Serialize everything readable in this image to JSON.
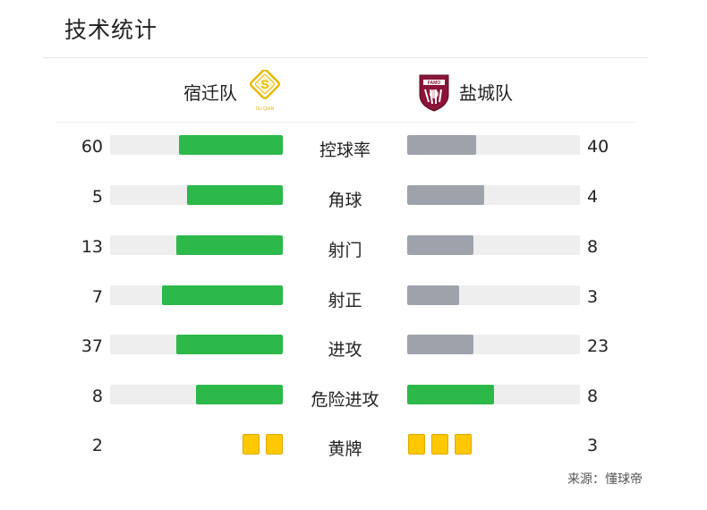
{
  "title": "技术统计",
  "home": {
    "name": "宿迁队",
    "logo_text": "SU QIAN",
    "bar_color": "#2db84a",
    "logo_color": "#e9b800"
  },
  "away": {
    "name": "盐城队",
    "logo_text": "FAMO",
    "bar_color": "#9da2ab",
    "logo_color": "#8a1538"
  },
  "neutral_track_color": "#eeeeee",
  "stats": [
    {
      "label": "控球率",
      "home": "60",
      "away": "40",
      "home_fraction": 0.6,
      "away_fraction": 0.4,
      "home_color": "#2db84a",
      "away_color": "#9da2ab"
    },
    {
      "label": "角球",
      "home": "5",
      "away": "4",
      "home_fraction": 0.555,
      "away_fraction": 0.444,
      "home_color": "#2db84a",
      "away_color": "#9da2ab"
    },
    {
      "label": "射门",
      "home": "13",
      "away": "8",
      "home_fraction": 0.619,
      "away_fraction": 0.381,
      "home_color": "#2db84a",
      "away_color": "#9da2ab"
    },
    {
      "label": "射正",
      "home": "7",
      "away": "3",
      "home_fraction": 0.7,
      "away_fraction": 0.3,
      "home_color": "#2db84a",
      "away_color": "#9da2ab"
    },
    {
      "label": "进攻",
      "home": "37",
      "away": "23",
      "home_fraction": 0.617,
      "away_fraction": 0.383,
      "home_color": "#2db84a",
      "away_color": "#9da2ab"
    },
    {
      "label": "危险进攻",
      "home": "8",
      "away": "8",
      "home_fraction": 0.5,
      "away_fraction": 0.5,
      "home_color": "#2db84a",
      "away_color": "#2db84a"
    }
  ],
  "yellow_cards": {
    "label": "黄牌",
    "home": "2",
    "away": "3",
    "home_count": 2,
    "away_count": 3,
    "color": "#ffc800"
  },
  "source": "来源：懂球帝"
}
